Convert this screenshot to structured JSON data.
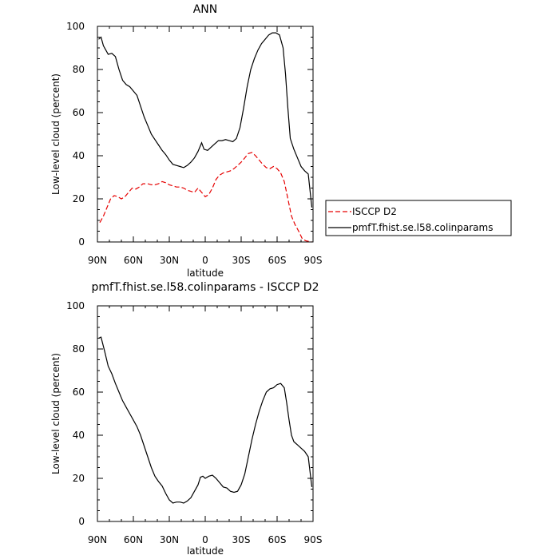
{
  "chart_data": [
    {
      "type": "line",
      "title": "ANN",
      "xlabel": "latitude",
      "ylabel": "Low-level cloud (percent)",
      "xlim": [
        90,
        -90
      ],
      "ylim": [
        0,
        100
      ],
      "x_tick_values": [
        90,
        60,
        30,
        0,
        -30,
        -60,
        -90
      ],
      "x_tick_labels": [
        "90N",
        "60N",
        "30N",
        "0",
        "30S",
        "60S",
        "90S"
      ],
      "y_tick_values": [
        0,
        20,
        40,
        60,
        80,
        100
      ],
      "y_tick_labels": [
        "0",
        "20",
        "40",
        "60",
        "80",
        "100"
      ],
      "legend": {
        "placement": "right"
      },
      "series": [
        {
          "name": "ISCCP D2",
          "color": "#e60000",
          "dash": true,
          "points": [
            [
              88,
              9
            ],
            [
              85,
              12
            ],
            [
              82,
              16
            ],
            [
              79,
              20
            ],
            [
              76,
              21.5
            ],
            [
              73,
              21
            ],
            [
              70,
              20
            ],
            [
              67,
              21
            ],
            [
              64,
              23
            ],
            [
              61,
              25
            ],
            [
              58,
              24.5
            ],
            [
              55,
              25.5
            ],
            [
              52,
              27
            ],
            [
              48,
              27
            ],
            [
              45,
              26.5
            ],
            [
              42,
              26.5
            ],
            [
              39,
              27
            ],
            [
              36,
              28
            ],
            [
              33,
              27.5
            ],
            [
              30,
              26.5
            ],
            [
              27,
              26
            ],
            [
              24,
              25.5
            ],
            [
              21,
              25.5
            ],
            [
              18,
              25
            ],
            [
              15,
              24
            ],
            [
              12,
              23.5
            ],
            [
              9,
              23
            ],
            [
              6,
              25
            ],
            [
              3,
              23
            ],
            [
              0,
              21
            ],
            [
              -3,
              22
            ],
            [
              -6,
              25
            ],
            [
              -9,
              29
            ],
            [
              -12,
              31
            ],
            [
              -15,
              32
            ],
            [
              -18,
              32.5
            ],
            [
              -21,
              33
            ],
            [
              -24,
              34
            ],
            [
              -27,
              35.5
            ],
            [
              -30,
              37
            ],
            [
              -33,
              39
            ],
            [
              -36,
              41
            ],
            [
              -39,
              41.5
            ],
            [
              -42,
              40
            ],
            [
              -45,
              38
            ],
            [
              -48,
              36
            ],
            [
              -51,
              34.5
            ],
            [
              -54,
              34
            ],
            [
              -57,
              35
            ],
            [
              -60,
              34
            ],
            [
              -63,
              32
            ],
            [
              -66,
              28
            ],
            [
              -69,
              20
            ],
            [
              -72,
              12
            ],
            [
              -75,
              8
            ],
            [
              -78,
              5
            ],
            [
              -81,
              1.5
            ],
            [
              -84,
              0.5
            ],
            [
              -87,
              0.2
            ],
            [
              -89,
              0
            ]
          ]
        },
        {
          "name": "pmfT.fhist.se.l58.colinparams",
          "color": "#000000",
          "dash": false,
          "points": [
            [
              89,
              94
            ],
            [
              87,
              95
            ],
            [
              85,
              91
            ],
            [
              83,
              89
            ],
            [
              81,
              87
            ],
            [
              78,
              87.5
            ],
            [
              75,
              86
            ],
            [
              72,
              80
            ],
            [
              69,
              75
            ],
            [
              66,
              73
            ],
            [
              63,
              72
            ],
            [
              60,
              70
            ],
            [
              57,
              68
            ],
            [
              54,
              63
            ],
            [
              51,
              58
            ],
            [
              48,
              54
            ],
            [
              45,
              50
            ],
            [
              42,
              47.5
            ],
            [
              39,
              45
            ],
            [
              36,
              42.5
            ],
            [
              33,
              40.5
            ],
            [
              30,
              38
            ],
            [
              27,
              36
            ],
            [
              24,
              35.5
            ],
            [
              21,
              35
            ],
            [
              18,
              34.5
            ],
            [
              15,
              35.5
            ],
            [
              12,
              37
            ],
            [
              9,
              39
            ],
            [
              6,
              42
            ],
            [
              3,
              46
            ],
            [
              1,
              43
            ],
            [
              -2,
              42.5
            ],
            [
              -5,
              44
            ],
            [
              -8,
              45.5
            ],
            [
              -11,
              47
            ],
            [
              -14,
              47
            ],
            [
              -17,
              47.5
            ],
            [
              -20,
              47
            ],
            [
              -23,
              46.5
            ],
            [
              -26,
              48
            ],
            [
              -29,
              53
            ],
            [
              -32,
              62
            ],
            [
              -35,
              72
            ],
            [
              -38,
              80
            ],
            [
              -41,
              85
            ],
            [
              -44,
              89
            ],
            [
              -47,
              92
            ],
            [
              -50,
              94
            ],
            [
              -53,
              96
            ],
            [
              -56,
              97
            ],
            [
              -59,
              97
            ],
            [
              -62,
              96
            ],
            [
              -65,
              90
            ],
            [
              -67,
              78
            ],
            [
              -69,
              62
            ],
            [
              -71,
              48
            ],
            [
              -74,
              43
            ],
            [
              -77,
              39
            ],
            [
              -80,
              35
            ],
            [
              -83,
              33
            ],
            [
              -86,
              31.5
            ],
            [
              -89,
              16
            ]
          ]
        }
      ]
    },
    {
      "type": "line",
      "title": "pmfT.fhist.se.l58.colinparams - ISCCP D2",
      "xlabel": "latitude",
      "ylabel": "Low-level cloud (percent)",
      "xlim": [
        90,
        -90
      ],
      "ylim": [
        0,
        100
      ],
      "x_tick_values": [
        90,
        60,
        30,
        0,
        -30,
        -60,
        -90
      ],
      "x_tick_labels": [
        "90N",
        "60N",
        "30N",
        "0",
        "30S",
        "60S",
        "90S"
      ],
      "y_tick_values": [
        0,
        20,
        40,
        60,
        80,
        100
      ],
      "y_tick_labels": [
        "0",
        "20",
        "40",
        "60",
        "80",
        "100"
      ],
      "series": [
        {
          "color": "#000000",
          "dash": false,
          "points": [
            [
              89,
              85
            ],
            [
              87,
              85.5
            ],
            [
              84,
              79
            ],
            [
              81,
              72
            ],
            [
              78,
              68.5
            ],
            [
              75,
              64
            ],
            [
              72,
              60
            ],
            [
              69,
              56
            ],
            [
              66,
              53
            ],
            [
              63,
              50
            ],
            [
              60,
              47
            ],
            [
              57,
              44
            ],
            [
              54,
              40
            ],
            [
              51,
              35
            ],
            [
              48,
              30
            ],
            [
              45,
              25
            ],
            [
              42,
              21
            ],
            [
              39,
              18.5
            ],
            [
              36,
              16.5
            ],
            [
              33,
              13
            ],
            [
              30,
              10
            ],
            [
              27,
              8.5
            ],
            [
              24,
              9
            ],
            [
              21,
              9
            ],
            [
              18,
              8.5
            ],
            [
              15,
              9.5
            ],
            [
              12,
              11
            ],
            [
              9,
              14
            ],
            [
              6,
              17
            ],
            [
              4,
              20.5
            ],
            [
              2,
              21
            ],
            [
              0,
              20
            ],
            [
              -3,
              21
            ],
            [
              -6,
              21.5
            ],
            [
              -9,
              20
            ],
            [
              -12,
              18
            ],
            [
              -15,
              16
            ],
            [
              -18,
              15.5
            ],
            [
              -21,
              14
            ],
            [
              -24,
              13.5
            ],
            [
              -27,
              14
            ],
            [
              -30,
              17
            ],
            [
              -33,
              22
            ],
            [
              -36,
              30
            ],
            [
              -39,
              38
            ],
            [
              -42,
              45
            ],
            [
              -45,
              51
            ],
            [
              -48,
              56
            ],
            [
              -51,
              60
            ],
            [
              -54,
              61.5
            ],
            [
              -57,
              62
            ],
            [
              -60,
              63.5
            ],
            [
              -63,
              64
            ],
            [
              -66,
              62
            ],
            [
              -68,
              55
            ],
            [
              -70,
              47
            ],
            [
              -72,
              40
            ],
            [
              -74,
              37
            ],
            [
              -77,
              35.5
            ],
            [
              -80,
              34
            ],
            [
              -83,
              32.5
            ],
            [
              -86,
              30
            ],
            [
              -89,
              16
            ]
          ]
        }
      ]
    }
  ]
}
